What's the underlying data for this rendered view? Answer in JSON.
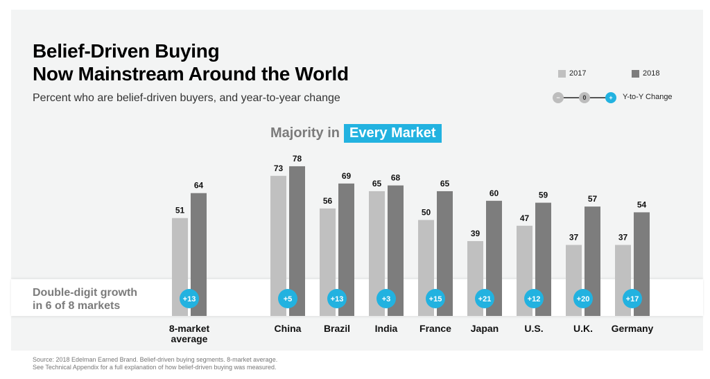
{
  "header": {
    "title_line1": "Belief-Driven Buying",
    "title_line2": "Now Mainstream Around the World",
    "subtitle": "Percent who are belief-driven buyers, and year-to-year change"
  },
  "headline": {
    "gray_text": "Majority in",
    "highlight_text": "Every Market"
  },
  "legend": {
    "items": [
      {
        "label": "2017",
        "color": "#c0c0c0"
      },
      {
        "label": "2018",
        "color": "#7d7d7d"
      }
    ],
    "yoy": {
      "minus_symbol": "−",
      "zero_symbol": "0",
      "plus_symbol": "+",
      "label": "Y-to-Y Change",
      "minus_color": "#bdbdbd",
      "zero_color": "#bdbdbd",
      "plus_color": "#22b2e0"
    }
  },
  "growth_note": {
    "line1": "Double-digit growth",
    "line2": "in 6 of 8 markets"
  },
  "source": {
    "line1": "Source: 2018 Edelman Earned Brand. Belief-driven buying segments. 8-market average.",
    "line2": "See Technical Appendix for a full explanation of how belief-driven buying was measured."
  },
  "colors": {
    "bar_2017": "#c0c0c0",
    "bar_2018": "#7d7d7d",
    "change_badge": "#22b2e0",
    "accent": "#22b2e0"
  },
  "chart_data": {
    "type": "bar",
    "title": "Belief-Driven Buying Now Mainstream Around the World",
    "subtitle": "Percent who are belief-driven buyers, and year-to-year change",
    "xlabel": "",
    "ylabel": "",
    "ylim": [
      0,
      100
    ],
    "grid": false,
    "legend_position": "top-right",
    "categories": [
      "8-market\naverage",
      "China",
      "Brazil",
      "India",
      "France",
      "Japan",
      "U.S.",
      "U.K.",
      "Germany"
    ],
    "category_labels": [
      [
        "8-market",
        "average"
      ],
      [
        "China"
      ],
      [
        "Brazil"
      ],
      [
        "India"
      ],
      [
        "France"
      ],
      [
        "Japan"
      ],
      [
        "U.S."
      ],
      [
        "U.K."
      ],
      [
        "Germany"
      ]
    ],
    "series": [
      {
        "name": "2017",
        "values": [
          51,
          73,
          56,
          65,
          50,
          39,
          47,
          37,
          37
        ]
      },
      {
        "name": "2018",
        "values": [
          64,
          78,
          69,
          68,
          65,
          60,
          59,
          57,
          54
        ]
      }
    ],
    "yoy_change": [
      "+13",
      "+5",
      "+13",
      "+3",
      "+15",
      "+21",
      "+12",
      "+20",
      "+17"
    ],
    "annotations": [
      "Majority in Every Market",
      "Double-digit growth in 6 of 8 markets"
    ]
  }
}
